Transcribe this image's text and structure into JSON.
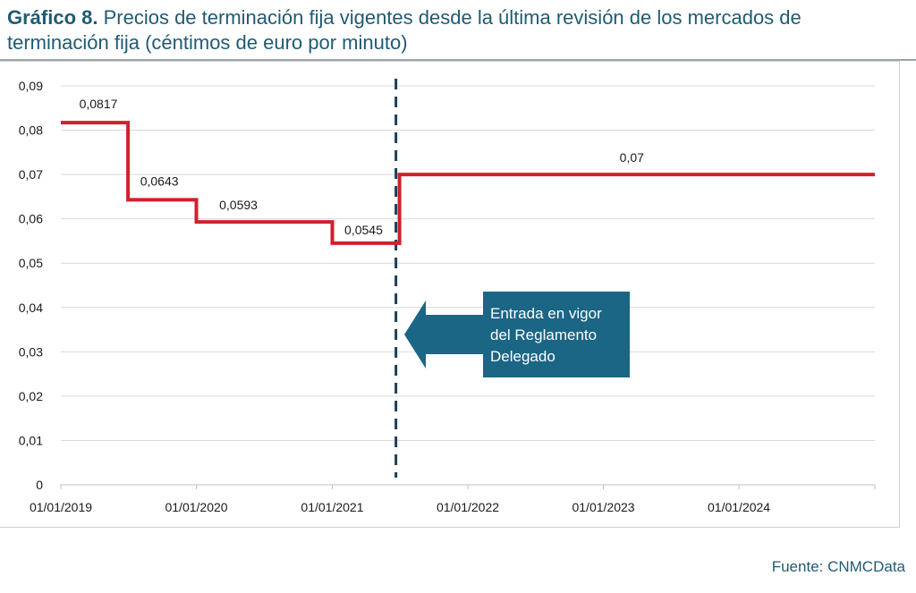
{
  "header": {
    "title_bold": "Gráfico 8.",
    "title_rest": " Precios de terminación fija vigentes desde la última revisión de los mercados de terminación fija (céntimos de euro por minuto)"
  },
  "source": "Fuente: CNMCData",
  "colors": {
    "series": "#d0202e",
    "annotation": "#1b6585",
    "text_title": "#1f5b73",
    "grid": "#d9d9d9"
  },
  "chart_data": {
    "type": "line",
    "subtype": "step",
    "title": "Precios de terminación fija vigentes desde la última revisión de los mercados de terminación fija (céntimos de euro por minuto)",
    "xlabel": "",
    "ylabel": "",
    "xlim": [
      "2019-01-01",
      "2025-01-01"
    ],
    "ylim": [
      0,
      0.09
    ],
    "yticks": [
      0,
      0.01,
      0.02,
      0.03,
      0.04,
      0.05,
      0.06,
      0.07,
      0.08,
      0.09
    ],
    "ytick_labels": [
      "0",
      "0,01",
      "0,02",
      "0,03",
      "0,04",
      "0,05",
      "0,06",
      "0,07",
      "0,08",
      "0,09"
    ],
    "xticks": [
      "2019-01-01",
      "2020-01-01",
      "2021-01-01",
      "2022-01-01",
      "2023-01-01",
      "2024-01-01"
    ],
    "xtick_labels": [
      "01/01/2019",
      "01/01/2020",
      "01/01/2021",
      "01/01/2022",
      "01/01/2023",
      "01/01/2024"
    ],
    "grid": true,
    "series": [
      {
        "steps": [
          {
            "start": "2019-01-01",
            "end": "2019-07-01",
            "value": 0.0817,
            "label": "0,0817"
          },
          {
            "start": "2019-07-01",
            "end": "2020-01-01",
            "value": 0.0643,
            "label": "0,0643"
          },
          {
            "start": "2020-01-01",
            "end": "2021-01-01",
            "value": 0.0593,
            "label": "0,0593"
          },
          {
            "start": "2021-01-01",
            "end": "2021-07-01",
            "value": 0.0545,
            "label": "0,0545"
          },
          {
            "start": "2021-07-01",
            "end": "2025-01-01",
            "value": 0.07,
            "label": "0,07"
          }
        ]
      }
    ],
    "annotations": [
      {
        "type": "vline",
        "x": "2021-07-01",
        "style": "dashed"
      },
      {
        "type": "callout",
        "x": "2021-07-01",
        "text_lines": [
          "Entrada en vigor",
          "del Reglamento",
          "Delegado"
        ]
      }
    ]
  }
}
